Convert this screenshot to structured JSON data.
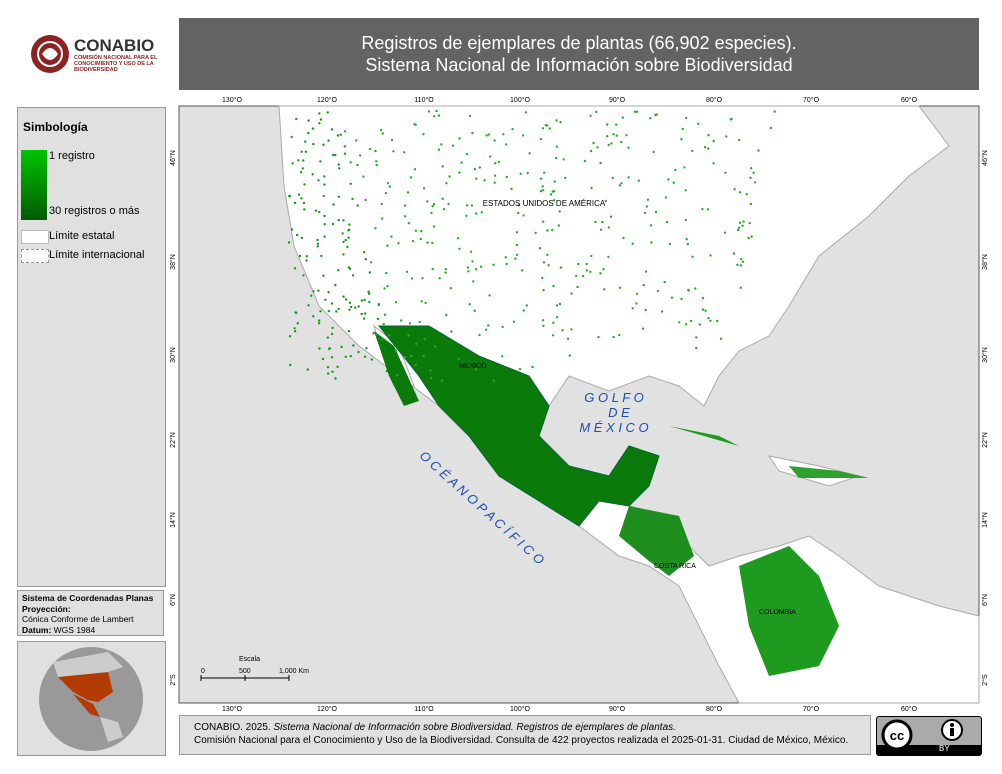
{
  "header": {
    "logo_name": "CONABIO",
    "logo_subtitle": "COMISIÓN NACIONAL PARA EL CONOCIMIENTO Y USO DE LA BIODIVERSIDAD",
    "title_line1": "Registros de ejemplares de plantas (66,902 especies).",
    "title_line2": "Sistema Nacional de Información sobre Biodiversidad"
  },
  "legend": {
    "title": "Simbología",
    "gradient_top": "1 registro",
    "gradient_bottom": "30 registros o más",
    "state_limit": "Límite estatal",
    "international_limit": "Límite internacional"
  },
  "projection": {
    "system": "Sistema de Coordenadas Planas",
    "projection_label": "Proyección:",
    "projection": "Cónica Conforme de Lambert",
    "datum_label": "Datum:",
    "datum": "WGS 1984"
  },
  "map": {
    "longitudes": [
      "130°O",
      "120°O",
      "110°O",
      "100°O",
      "90°O",
      "80°O",
      "70°O",
      "60°O"
    ],
    "latitudes": [
      "46°N",
      "38°N",
      "30°N",
      "22°N",
      "14°N",
      "6°N",
      "2°S"
    ],
    "labels": {
      "usa": "ESTADOS UNIDOS DE AMÉRICA",
      "mexico": "MÉXICO",
      "costa_rica": "COSTA RICA",
      "colombia": "COLOMBIA",
      "gulf_1": "G O L F O",
      "gulf_2": "D E",
      "gulf_3": "M É X I C O",
      "pacific": "O C É A N O   P A C Í F I C O"
    },
    "scale": {
      "title": "Escala",
      "ticks": [
        "0",
        "500",
        "1,000 Km"
      ]
    }
  },
  "footer": {
    "line1_a": "CONABIO. 2025.",
    "line1_b": "Sistema Nacional de Información sobre Biodiversidad. Registros de ejemplares de plantas.",
    "line2": "Comisión Nacional para el Conocimiento y Uso de la Biodiversidad. Consulta de 422 proyectos realizada el 2025-01-31. Ciudad de México, México.",
    "license": "BY"
  }
}
